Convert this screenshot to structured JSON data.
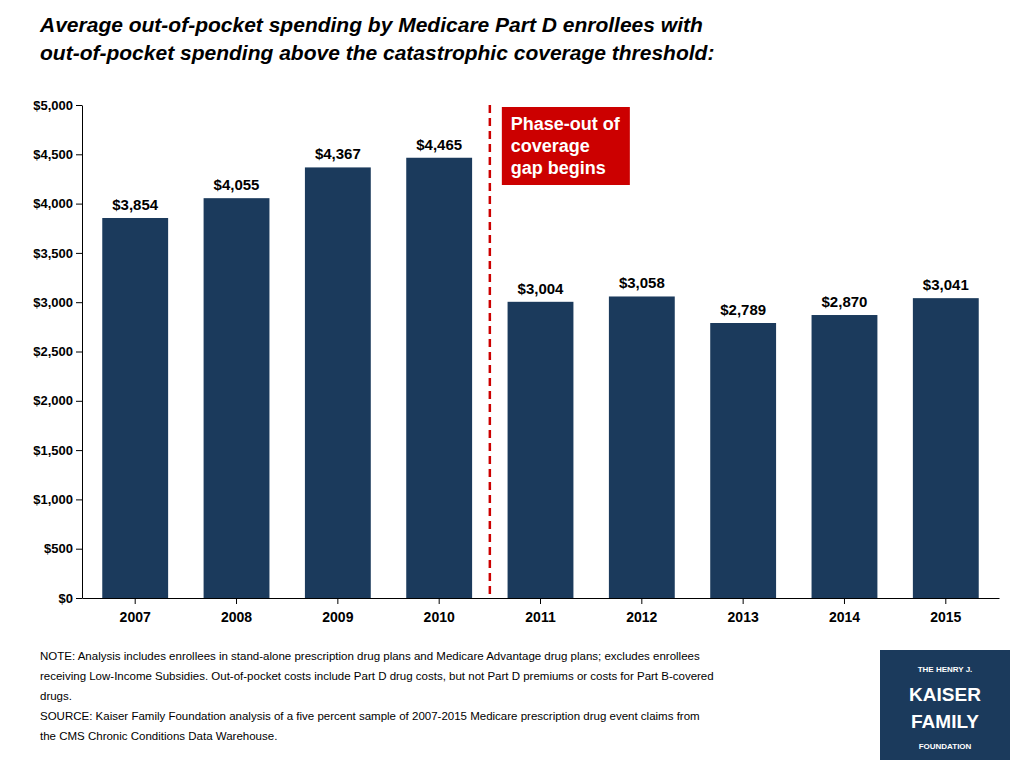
{
  "chart_data": {
    "type": "bar",
    "title": "Average out-of-pocket spending by Medicare Part D enrollees with\nout-of-pocket spending above the catastrophic coverage threshold:",
    "categories": [
      "2007",
      "2008",
      "2009",
      "2010",
      "2011",
      "2012",
      "2013",
      "2014",
      "2015"
    ],
    "values": [
      3854,
      4055,
      4367,
      4465,
      3004,
      3058,
      2789,
      2870,
      3041
    ],
    "value_labels": [
      "$3,854",
      "$4,055",
      "$4,367",
      "$4,465",
      "$3,004",
      "$3,058",
      "$2,789",
      "$2,870",
      "$3,041"
    ],
    "data_labels": true,
    "color": "#1b3a5c",
    "ylim": [
      0,
      5000
    ],
    "yticks": [
      {
        "value": 0,
        "label": "$0"
      },
      {
        "value": 500,
        "label": "$500"
      },
      {
        "value": 1000,
        "label": "$1,000"
      },
      {
        "value": 1500,
        "label": "$1,500"
      },
      {
        "value": 2000,
        "label": "$2,000"
      },
      {
        "value": 2500,
        "label": "$2,500"
      },
      {
        "value": 3000,
        "label": "$3,000"
      },
      {
        "value": 3500,
        "label": "$3,500"
      },
      {
        "value": 4000,
        "label": "$4,000"
      },
      {
        "value": 4500,
        "label": "$4,500"
      },
      {
        "value": 5000,
        "label": "$5,000"
      }
    ],
    "grid": false,
    "annotation": {
      "text": "Phase-out of\ncoverage\ngap begins",
      "color": "#cc0000"
    },
    "note": [
      "NOTE: Analysis includes enrollees in stand-alone prescription drug plans and Medicare Advantage drug plans; excludes enrollees",
      "receiving Low-Income Subsidies. Out-of-pocket costs include Part D drug costs, but not Part D premiums or costs for Part B-covered",
      "drugs.",
      "SOURCE: Kaiser Family Foundation analysis of a five percent sample of 2007-2015 Medicare prescription drug event claims from",
      "the CMS Chronic Conditions Data Warehouse."
    ],
    "logo": [
      "THE HENRY J.",
      "KAISER",
      "FAMILY",
      "FOUNDATION"
    ]
  }
}
